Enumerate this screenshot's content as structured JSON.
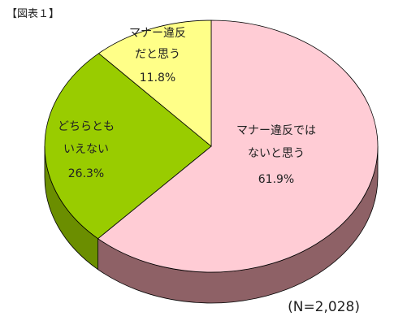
{
  "figure_label": "【図表１】",
  "sample_size": "(N=2,028)",
  "colors": {
    "pink_top": "#FFCCD5",
    "pink_side": "#8E6166",
    "green_top": "#99CC00",
    "green_side": "#6B8E00",
    "yellow_top": "#FFFF88",
    "yellow_side": "#B5B55A",
    "outline": "#000000"
  },
  "chart_data": {
    "type": "pie",
    "title": "",
    "categories": [
      "マナー違反ではないと思う",
      "どちらともいえない",
      "マナー違反だと思う"
    ],
    "values": [
      61.9,
      26.3,
      11.8
    ],
    "label_lines": [
      [
        "マナー違反では",
        "ないと思う"
      ],
      [
        "どちらとも",
        "いえない"
      ],
      [
        "マナー違反",
        "だと思う"
      ]
    ],
    "value_labels": [
      "61.9%",
      "26.3%",
      "11.8%"
    ]
  }
}
